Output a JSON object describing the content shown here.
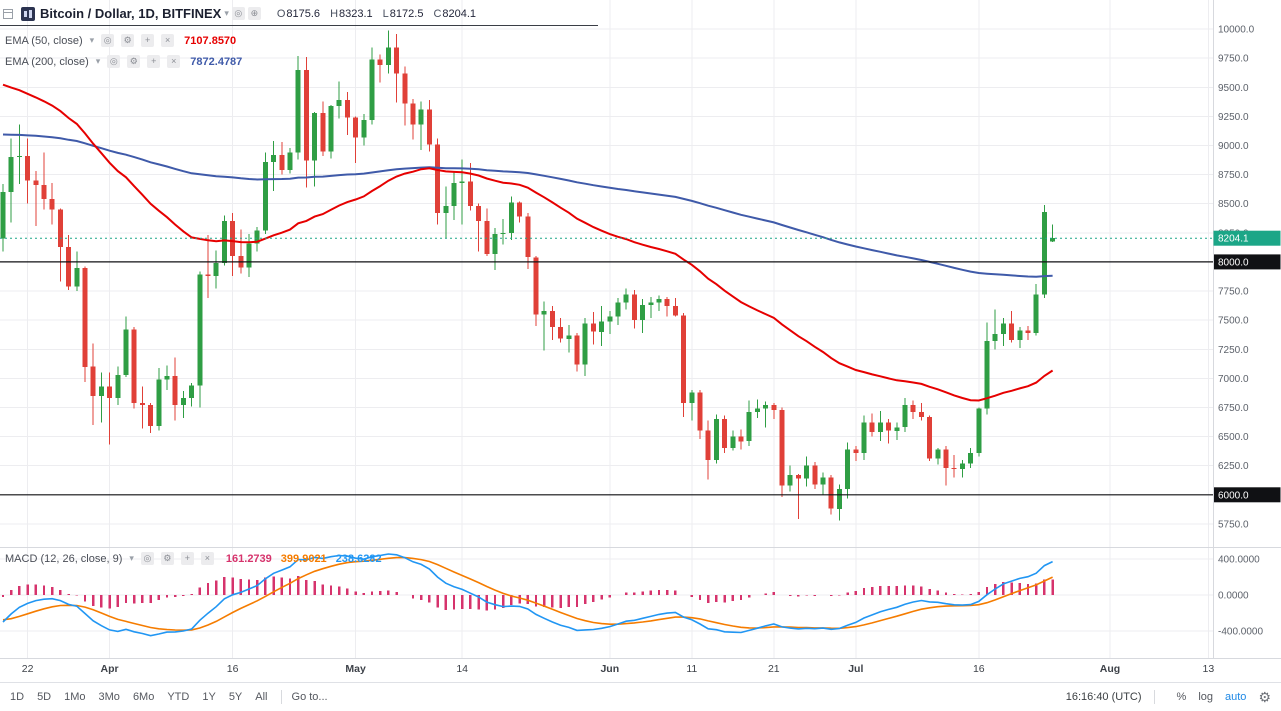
{
  "header": {
    "symbol_title": "Bitcoin / Dollar, 1D, BITFINEX",
    "ohlc": {
      "o_label": "O",
      "o": "8175.6",
      "h_label": "H",
      "h": "8323.1",
      "l_label": "L",
      "l": "8172.5",
      "c_label": "C",
      "c": "8204.1"
    }
  },
  "icons": {
    "eye": "◎",
    "gear": "⚙",
    "plus": "+",
    "close": "×",
    "caret": "▾",
    "compare": "⊕"
  },
  "indicators": [
    {
      "title": "EMA (50, close)",
      "value": "7107.8570",
      "color": "#e60000"
    },
    {
      "title": "EMA (200, close)",
      "value": "7872.4787",
      "color": "#3f5aa9"
    }
  ],
  "macd_legend": {
    "title": "MACD (12, 26, close, 9)",
    "values": [
      {
        "text": "161.2739",
        "color": "#d6336c"
      },
      {
        "text": "399.9021",
        "color": "#f57c00"
      },
      {
        "text": "238.6282",
        "color": "#2196f3"
      }
    ]
  },
  "toolbar": {
    "ranges": [
      "1D",
      "5D",
      "1Mo",
      "3Mo",
      "6Mo",
      "YTD",
      "1Y",
      "5Y",
      "All"
    ],
    "goto": "Go to...",
    "time": "16:16:40 (UTC)",
    "percent": "%",
    "log": "log",
    "auto": "auto"
  },
  "chart_data": {
    "type": "candlestick",
    "title": "Bitcoin / Dollar, 1D, BITFINEX",
    "interval": "1D",
    "last_price": 8204.1,
    "drawn_levels": [
      8000,
      6000
    ],
    "y_axis": {
      "min": 5750,
      "max": 10000,
      "step": 250
    },
    "macd": {
      "fast": 12,
      "slow": 26,
      "signal": 9,
      "axis_ticks": [
        400,
        0,
        -400
      ]
    },
    "x_axis": [
      {
        "label": "22",
        "i": 3
      },
      {
        "label": "Apr",
        "i": 13,
        "month": true
      },
      {
        "label": "16",
        "i": 28
      },
      {
        "label": "May",
        "i": 43,
        "month": true
      },
      {
        "label": "14",
        "i": 56
      },
      {
        "label": "Jun",
        "i": 74,
        "month": true
      },
      {
        "label": "11",
        "i": 84
      },
      {
        "label": "21",
        "i": 94
      },
      {
        "label": "Jul",
        "i": 104,
        "month": true
      },
      {
        "label": "16",
        "i": 119
      },
      {
        "label": "Aug",
        "i": 135,
        "month": true
      },
      {
        "label": "13",
        "i": 147
      }
    ],
    "colors": {
      "up": "#2f9e44",
      "down": "#e04038",
      "ema50": "#e60000",
      "ema200": "#3f5aa9",
      "macd": "#2196f3",
      "signal": "#f57c00",
      "histogram": "#d6336c",
      "last_price": "#1ba687",
      "level": "#101114"
    },
    "candles": [
      [
        8200,
        8670,
        8090,
        8600
      ],
      [
        8600,
        9060,
        8340,
        8900
      ],
      [
        8900,
        9180,
        8670,
        8910
      ],
      [
        8910,
        9060,
        8500,
        8700
      ],
      [
        8700,
        8780,
        8310,
        8660
      ],
      [
        8660,
        8940,
        8450,
        8540
      ],
      [
        8540,
        8680,
        8320,
        8450
      ],
      [
        8450,
        8460,
        7830,
        8130
      ],
      [
        8130,
        8230,
        7760,
        7790
      ],
      [
        7790,
        8090,
        7750,
        7950
      ],
      [
        7950,
        7960,
        6970,
        7100
      ],
      [
        7100,
        7300,
        6600,
        6850
      ],
      [
        6850,
        7050,
        6620,
        6930
      ],
      [
        6930,
        7050,
        6430,
        6830
      ],
      [
        6830,
        7100,
        6770,
        7030
      ],
      [
        7030,
        7530,
        7010,
        7420
      ],
      [
        7420,
        7440,
        6740,
        6790
      ],
      [
        6790,
        6930,
        6570,
        6770
      ],
      [
        6770,
        6790,
        6530,
        6590
      ],
      [
        6590,
        7090,
        6550,
        6990
      ],
      [
        6990,
        7110,
        6900,
        7020
      ],
      [
        7020,
        7180,
        6640,
        6770
      ],
      [
        6770,
        6890,
        6660,
        6830
      ],
      [
        6830,
        6960,
        6760,
        6940
      ],
      [
        6940,
        7920,
        6750,
        7890
      ],
      [
        7890,
        8230,
        7690,
        7880
      ],
      [
        7880,
        8100,
        7770,
        7990
      ],
      [
        7990,
        8400,
        7970,
        8350
      ],
      [
        8350,
        8420,
        7880,
        8050
      ],
      [
        8050,
        8280,
        7900,
        7950
      ],
      [
        7950,
        8240,
        7870,
        8160
      ],
      [
        8160,
        8300,
        8090,
        8270
      ],
      [
        8270,
        8940,
        8240,
        8860
      ],
      [
        8860,
        9040,
        8610,
        8920
      ],
      [
        8920,
        9030,
        8750,
        8790
      ],
      [
        8790,
        8980,
        8760,
        8940
      ],
      [
        8940,
        9770,
        8880,
        9650
      ],
      [
        9650,
        9760,
        8640,
        8870
      ],
      [
        8870,
        9290,
        8650,
        9280
      ],
      [
        9280,
        9380,
        8910,
        8950
      ],
      [
        8950,
        9350,
        8890,
        9340
      ],
      [
        9340,
        9550,
        9230,
        9390
      ],
      [
        9390,
        9460,
        9090,
        9240
      ],
      [
        9240,
        9250,
        8850,
        9070
      ],
      [
        9070,
        9270,
        9000,
        9220
      ],
      [
        9220,
        9840,
        9180,
        9740
      ],
      [
        9740,
        9780,
        9540,
        9690
      ],
      [
        9690,
        9990,
        9620,
        9840
      ],
      [
        9840,
        9960,
        9370,
        9620
      ],
      [
        9620,
        9680,
        9170,
        9360
      ],
      [
        9360,
        9400,
        9050,
        9180
      ],
      [
        9180,
        9380,
        8960,
        9310
      ],
      [
        9310,
        9390,
        8950,
        9010
      ],
      [
        9010,
        9060,
        8320,
        8420
      ],
      [
        8420,
        8650,
        8200,
        8480
      ],
      [
        8480,
        8770,
        8360,
        8680
      ],
      [
        8680,
        8880,
        8320,
        8690
      ],
      [
        8690,
        8850,
        8440,
        8480
      ],
      [
        8480,
        8500,
        8090,
        8350
      ],
      [
        8350,
        8460,
        8050,
        8070
      ],
      [
        8070,
        8290,
        7930,
        8240
      ],
      [
        8240,
        8370,
        8150,
        8250
      ],
      [
        8250,
        8560,
        8190,
        8510
      ],
      [
        8510,
        8520,
        8340,
        8390
      ],
      [
        8390,
        8420,
        7940,
        8040
      ],
      [
        8040,
        8050,
        7450,
        7550
      ],
      [
        7550,
        7660,
        7240,
        7580
      ],
      [
        7580,
        7620,
        7330,
        7440
      ],
      [
        7440,
        7520,
        7310,
        7340
      ],
      [
        7340,
        7460,
        7220,
        7370
      ],
      [
        7370,
        7390,
        7060,
        7120
      ],
      [
        7120,
        7520,
        7020,
        7470
      ],
      [
        7470,
        7570,
        7290,
        7400
      ],
      [
        7400,
        7620,
        7280,
        7490
      ],
      [
        7490,
        7580,
        7380,
        7530
      ],
      [
        7530,
        7690,
        7460,
        7650
      ],
      [
        7650,
        7770,
        7590,
        7720
      ],
      [
        7720,
        7760,
        7430,
        7500
      ],
      [
        7500,
        7680,
        7390,
        7630
      ],
      [
        7630,
        7700,
        7520,
        7650
      ],
      [
        7650,
        7710,
        7580,
        7680
      ],
      [
        7680,
        7700,
        7530,
        7620
      ],
      [
        7620,
        7690,
        7530,
        7540
      ],
      [
        7540,
        7560,
        6670,
        6790
      ],
      [
        6790,
        6900,
        6640,
        6880
      ],
      [
        6880,
        6900,
        6480,
        6550
      ],
      [
        6550,
        6640,
        6130,
        6300
      ],
      [
        6300,
        6690,
        6270,
        6650
      ],
      [
        6650,
        6680,
        6360,
        6400
      ],
      [
        6400,
        6550,
        6380,
        6500
      ],
      [
        6500,
        6560,
        6390,
        6460
      ],
      [
        6460,
        6810,
        6420,
        6710
      ],
      [
        6710,
        6820,
        6660,
        6740
      ],
      [
        6740,
        6800,
        6580,
        6770
      ],
      [
        6770,
        6790,
        6650,
        6730
      ],
      [
        6730,
        6750,
        5980,
        6080
      ],
      [
        6080,
        6250,
        6030,
        6170
      ],
      [
        6170,
        6180,
        5790,
        6140
      ],
      [
        6140,
        6330,
        6070,
        6250
      ],
      [
        6250,
        6280,
        6050,
        6090
      ],
      [
        6090,
        6190,
        6000,
        6150
      ],
      [
        6150,
        6170,
        5830,
        5880
      ],
      [
        5880,
        6090,
        5780,
        6050
      ],
      [
        6050,
        6450,
        5970,
        6390
      ],
      [
        6390,
        6420,
        6290,
        6360
      ],
      [
        6360,
        6680,
        6300,
        6620
      ],
      [
        6620,
        6700,
        6500,
        6540
      ],
      [
        6540,
        6720,
        6460,
        6620
      ],
      [
        6620,
        6650,
        6440,
        6550
      ],
      [
        6550,
        6620,
        6470,
        6580
      ],
      [
        6580,
        6830,
        6540,
        6770
      ],
      [
        6770,
        6810,
        6650,
        6710
      ],
      [
        6710,
        6790,
        6640,
        6670
      ],
      [
        6670,
        6680,
        6290,
        6310
      ],
      [
        6310,
        6400,
        6260,
        6390
      ],
      [
        6390,
        6420,
        6080,
        6230
      ],
      [
        6230,
        6340,
        6150,
        6220
      ],
      [
        6220,
        6300,
        6150,
        6270
      ],
      [
        6270,
        6400,
        6230,
        6360
      ],
      [
        6360,
        6750,
        6330,
        6740
      ],
      [
        6740,
        7480,
        6690,
        7320
      ],
      [
        7320,
        7590,
        7250,
        7380
      ],
      [
        7380,
        7520,
        7280,
        7470
      ],
      [
        7470,
        7580,
        7310,
        7330
      ],
      [
        7330,
        7440,
        7260,
        7410
      ],
      [
        7410,
        7450,
        7330,
        7390
      ],
      [
        7390,
        7810,
        7370,
        7720
      ],
      [
        7720,
        8491,
        7690,
        8430
      ],
      [
        8175.6,
        8323.1,
        8172.5,
        8204.1
      ]
    ]
  }
}
